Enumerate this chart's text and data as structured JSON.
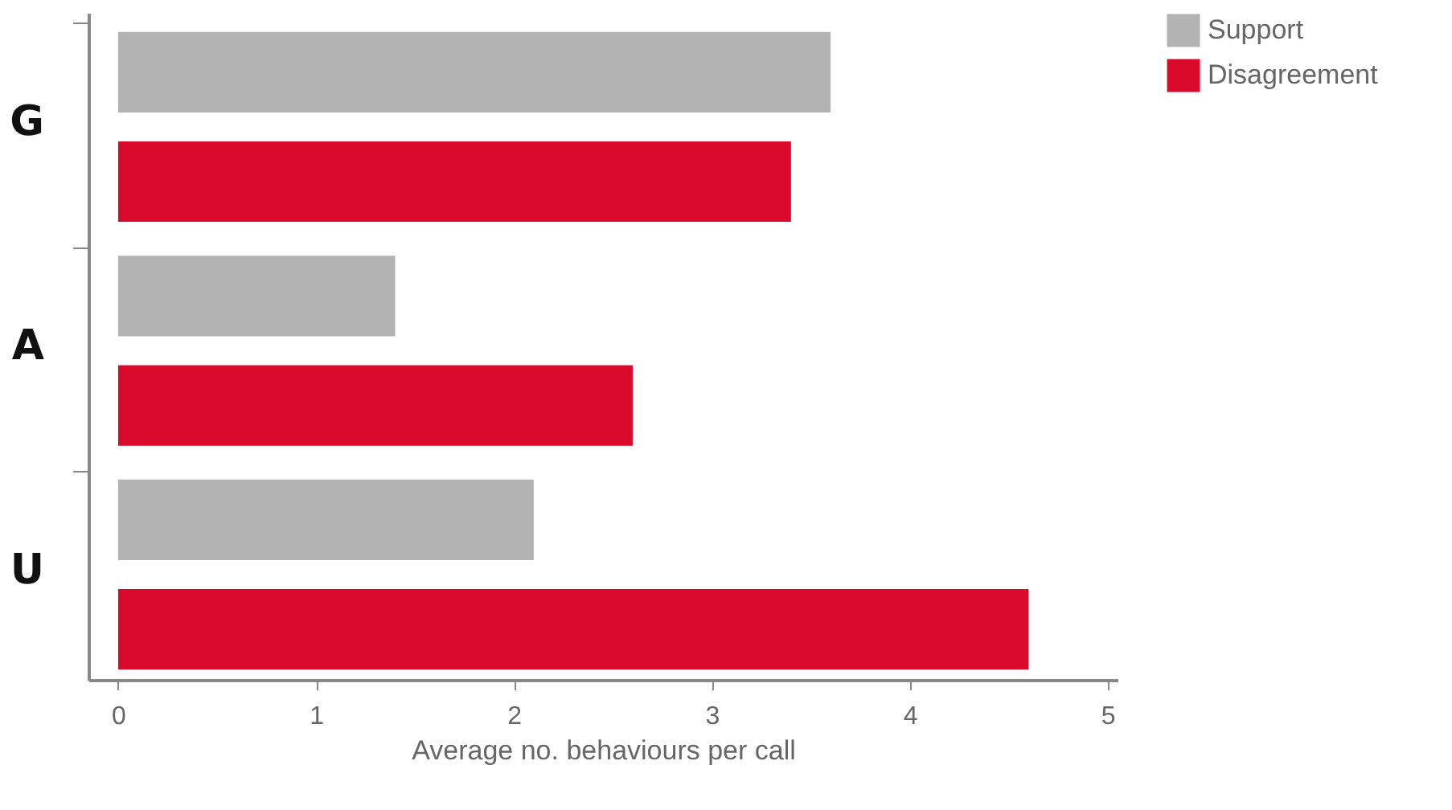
{
  "chart_data": {
    "type": "bar",
    "orientation": "horizontal",
    "xlabel": "Average no. behaviours per call",
    "categories": [
      "G",
      "A",
      "U"
    ],
    "series": [
      {
        "name": "Support",
        "color": "#b3b3b3",
        "values": [
          3.6,
          1.4,
          2.1
        ]
      },
      {
        "name": "Disagreement",
        "color": "#d90a2c",
        "values": [
          3.4,
          2.6,
          4.6
        ]
      }
    ],
    "xlim": [
      -0.15,
      5.05
    ],
    "xticks": [
      0,
      1,
      2,
      3,
      4,
      5
    ],
    "grid": false,
    "legend": "right"
  }
}
